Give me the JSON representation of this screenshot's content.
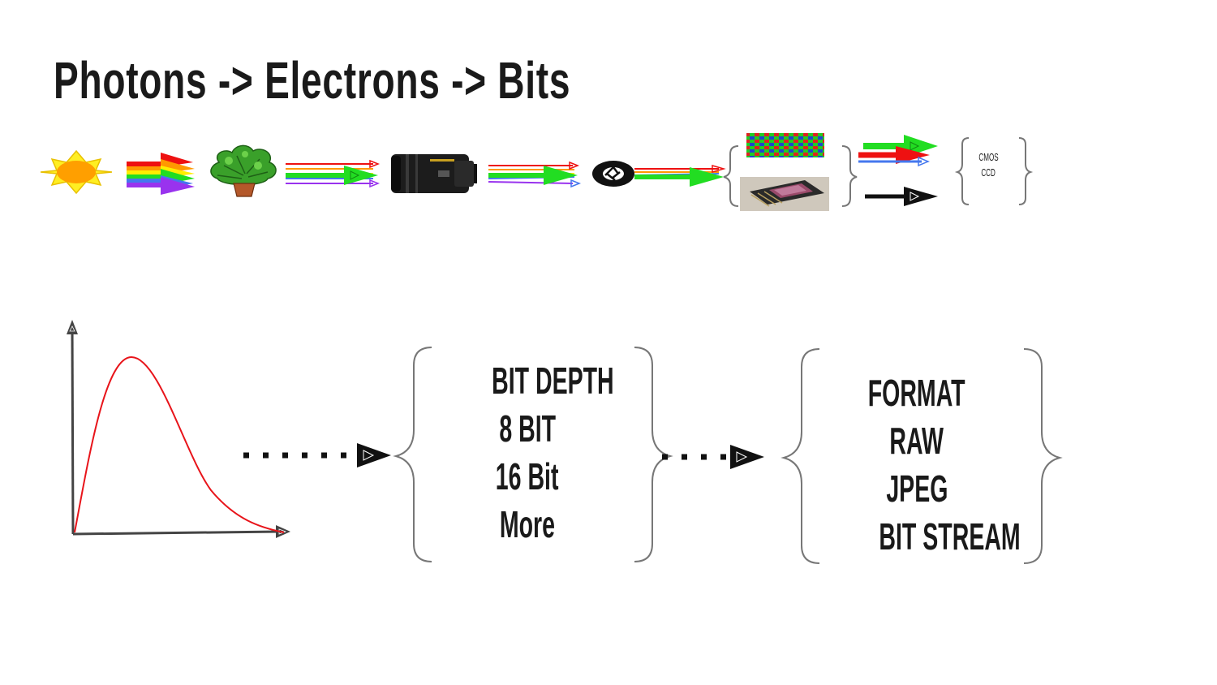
{
  "slide": {
    "title": "Photons -> Electrons -> Bits"
  },
  "sensor_types": [
    "CMOS",
    "CCD"
  ],
  "bit_depth": {
    "lines": [
      "BIT DEPTH",
      "8 BIT",
      "16 Bit",
      "More"
    ]
  },
  "formats": {
    "lines": [
      "FORMAT",
      "RAW",
      "JPEG",
      "BIT STREAM"
    ]
  },
  "colors": {
    "curve": "#e8141a",
    "axis": "#444444",
    "brace": "#777777",
    "text": "#1a1a1a",
    "green": "#22dd22",
    "red": "#ee1111",
    "blue": "#4477ee",
    "purple": "#9933ee",
    "orange": "#ff9900",
    "yellow": "#ffee00"
  },
  "icons": [
    "sun-icon",
    "rainbow-arrow-icon",
    "plant-icon",
    "lens-icon",
    "aperture-icon",
    "bayer-filter-icon",
    "sensor-chip-icon"
  ]
}
